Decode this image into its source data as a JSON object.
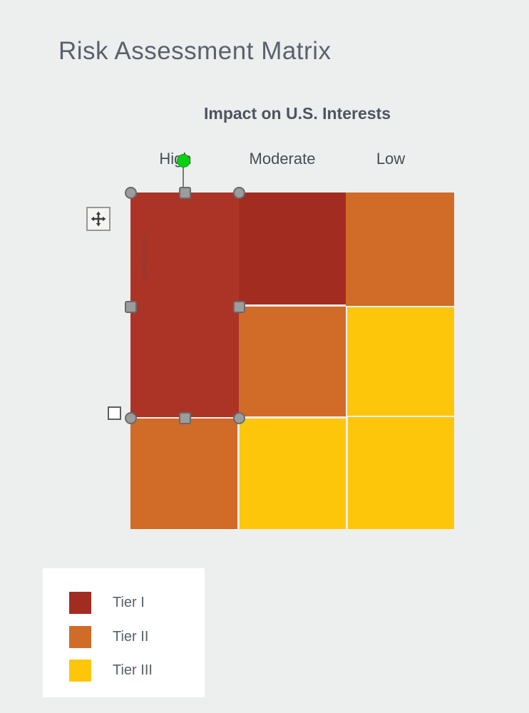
{
  "title": "Risk Assessment Matrix",
  "colors": {
    "background": "#edeeee",
    "tier1": "#a32c21",
    "tier1_selected": "#ab3427",
    "tier2": "#d16b28",
    "tier3": "#fdc60b",
    "title_text": "#59626e",
    "axis_text": "#4c5561",
    "handle_fill": "#9c9c9c",
    "handle_border": "#6a6a6a",
    "rotation_handle_green": "#0bd011",
    "legend_background": "#ffffff"
  },
  "matrix": {
    "column_axis_title": "Impact on U.S. Interests",
    "column_labels": [
      "High",
      "Moderate",
      "Low"
    ],
    "row_axis_label": "Likelihood",
    "cells": [
      [
        "tier1",
        "tier1",
        "tier2"
      ],
      [
        "tier1",
        "tier2",
        "tier3"
      ],
      [
        "tier2",
        "tier3",
        "tier3"
      ]
    ]
  },
  "legend": {
    "items": [
      {
        "label": "Tier I",
        "tier": "tier1"
      },
      {
        "label": "Tier II",
        "tier": "tier2"
      },
      {
        "label": "Tier III",
        "tier": "tier3"
      }
    ]
  }
}
